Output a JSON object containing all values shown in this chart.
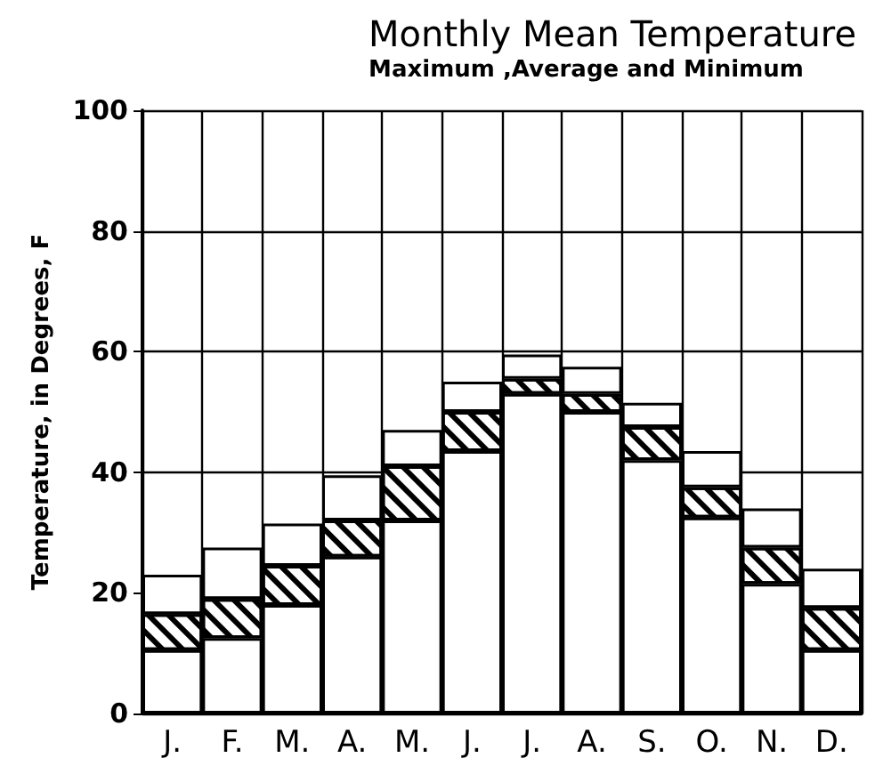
{
  "chart_data": {
    "type": "bar",
    "title": "Monthly Mean Temperature",
    "subtitle": "Maximum ,Average and Minimum",
    "ylabel": "Temperature, in Degrees, F",
    "categories": [
      "J.",
      "F.",
      "M.",
      "A.",
      "M.",
      "J.",
      "J.",
      "A.",
      "S.",
      "O.",
      "N.",
      "D."
    ],
    "stacked": true,
    "series": [
      {
        "color": "#ffffff",
        "values": [
          10.5,
          12.5,
          18,
          26,
          32,
          43.5,
          53,
          50,
          42,
          32.5,
          21.5,
          10.5
        ]
      },
      {
        "color": "#000000",
        "values": [
          6,
          6.5,
          6.5,
          6,
          9,
          6.5,
          2.5,
          3,
          5.5,
          5,
          6,
          7
        ]
      },
      {
        "color": "#ffffff",
        "values": [
          6.5,
          8.5,
          7,
          7.5,
          6,
          5,
          4,
          4.5,
          4,
          6,
          6.5,
          6.5
        ]
      }
    ],
    "ylim": [
      0,
      100
    ],
    "yticks": [
      0,
      20,
      40,
      60,
      80,
      100
    ],
    "grid": true
  }
}
